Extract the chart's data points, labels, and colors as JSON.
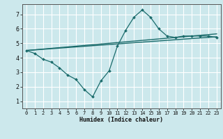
{
  "title": "",
  "xlabel": "Humidex (Indice chaleur)",
  "ylabel": "",
  "bg_color": "#cce8ec",
  "line_color": "#1a6b6b",
  "grid_color": "#b0d8dc",
  "xlim": [
    -0.5,
    23.5
  ],
  "ylim": [
    0.5,
    7.7
  ],
  "xticks": [
    0,
    1,
    2,
    3,
    4,
    5,
    6,
    7,
    8,
    9,
    10,
    11,
    12,
    13,
    14,
    15,
    16,
    17,
    18,
    19,
    20,
    21,
    22,
    23
  ],
  "yticks": [
    1,
    2,
    3,
    4,
    5,
    6,
    7
  ],
  "line1_x": [
    0,
    1,
    2,
    3,
    4,
    5,
    6,
    7,
    8,
    9,
    10,
    11,
    12,
    13,
    14,
    15,
    16,
    17,
    18,
    19,
    20,
    21,
    22,
    23
  ],
  "line1_y": [
    4.5,
    4.3,
    3.9,
    3.7,
    3.3,
    2.8,
    2.5,
    1.8,
    1.3,
    2.4,
    3.1,
    4.8,
    5.9,
    6.8,
    7.3,
    6.8,
    6.0,
    5.5,
    5.4,
    5.5,
    5.5,
    5.5,
    5.5,
    5.4
  ],
  "line2_x": [
    0,
    23
  ],
  "line2_y": [
    4.5,
    5.65
  ],
  "line3_x": [
    0,
    23
  ],
  "line3_y": [
    4.5,
    5.45
  ],
  "xlabel_fontsize": 6.0,
  "xtick_fontsize": 5.0,
  "ytick_fontsize": 6.0
}
